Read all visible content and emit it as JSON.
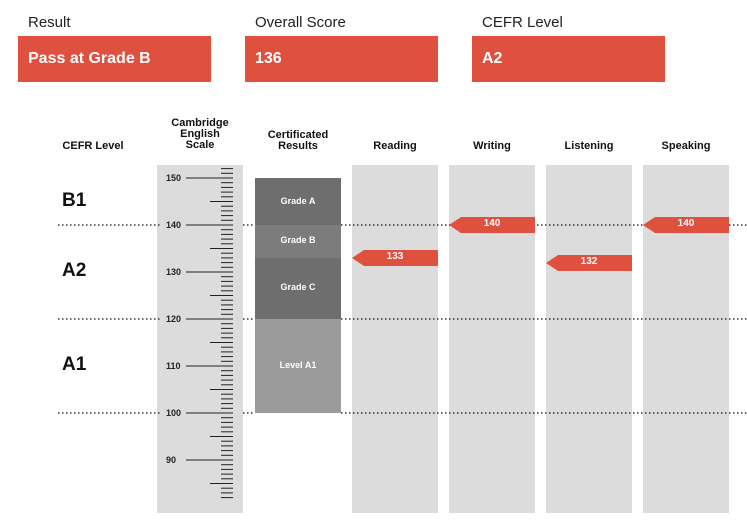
{
  "summary": {
    "result": {
      "label": "Result",
      "value": "Pass at Grade B"
    },
    "overall_score": {
      "label": "Overall Score",
      "value": "136"
    },
    "cefr_level": {
      "label": "CEFR Level",
      "value": "A2"
    }
  },
  "accent_color": "#e0503e",
  "column_headers": {
    "cefr": "CEFR Level",
    "scale_line1": "Cambridge",
    "scale_line2": "English",
    "scale_line3": "Scale",
    "cert_line1": "Certificated",
    "cert_line2": "Results",
    "reading": "Reading",
    "writing": "Writing",
    "listening": "Listening",
    "speaking": "Speaking"
  },
  "cefr_levels": [
    "B1",
    "A2",
    "A1"
  ],
  "scale": {
    "min": 82,
    "max": 152,
    "labels": [
      150,
      140,
      130,
      120,
      110,
      100,
      90
    ]
  },
  "grade_bands": {
    "grade_a": {
      "label": "Grade A",
      "from": 140,
      "to": 150
    },
    "grade_b": {
      "label": "Grade B",
      "from": 133,
      "to": 140
    },
    "grade_c": {
      "label": "Grade C",
      "from": 120,
      "to": 133
    },
    "level_a1": {
      "label": "Level A1",
      "from": 100,
      "to": 120
    }
  },
  "skill_scores": {
    "reading": 133,
    "writing": 140,
    "listening": 132,
    "speaking": 140
  },
  "skill_score_labels": {
    "reading": "133",
    "writing": "140",
    "listening": "132",
    "speaking": "140"
  }
}
